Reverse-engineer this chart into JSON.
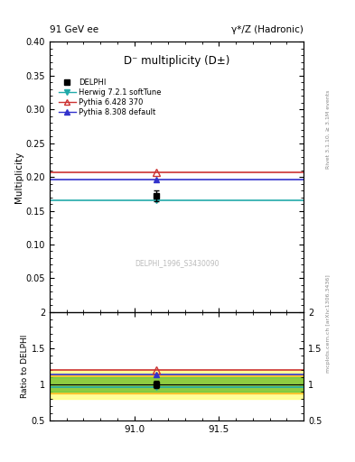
{
  "title_top_left": "91 GeV ee",
  "title_top_right": "γ*/Z (Hadronic)",
  "plot_title": "D⁻ multiplicity (D±)",
  "watermark": "DELPHI_1996_S3430090",
  "right_label_top": "Rivet 3.1.10, ≥ 3.1M events",
  "right_label_bottom": "mcplots.cern.ch [arXiv:1306.3436]",
  "xlim": [
    90.5,
    92.0
  ],
  "xticks": [
    91.0,
    91.5
  ],
  "ylim_main": [
    0.0,
    0.4
  ],
  "yticks_main": [
    0.05,
    0.1,
    0.15,
    0.2,
    0.25,
    0.3,
    0.35,
    0.4
  ],
  "ylabel_main": "Multiplicity",
  "ylim_ratio": [
    0.5,
    2.0
  ],
  "yticks_ratio": [
    0.5,
    1.0,
    1.5,
    2.0
  ],
  "ylabel_ratio": "Ratio to DELPHI",
  "data_x": 91.13,
  "data_y": 0.172,
  "data_yerr": 0.008,
  "herwig_y": 0.165,
  "herwig_color": "#22aaaa",
  "herwig_label": "Herwig 7.2.1 softTune",
  "pythia6_y": 0.207,
  "pythia6_color": "#cc3333",
  "pythia6_label": "Pythia 6.428 370",
  "pythia8_y": 0.196,
  "pythia8_color": "#3333cc",
  "pythia8_label": "Pythia 8.308 default",
  "data_color": "#000000",
  "data_label": "DELPHI",
  "band_green_inner": 0.1,
  "band_yellow_outer": 0.2,
  "band_orange_mid": 0.13,
  "mc_marker_x": 91.13
}
